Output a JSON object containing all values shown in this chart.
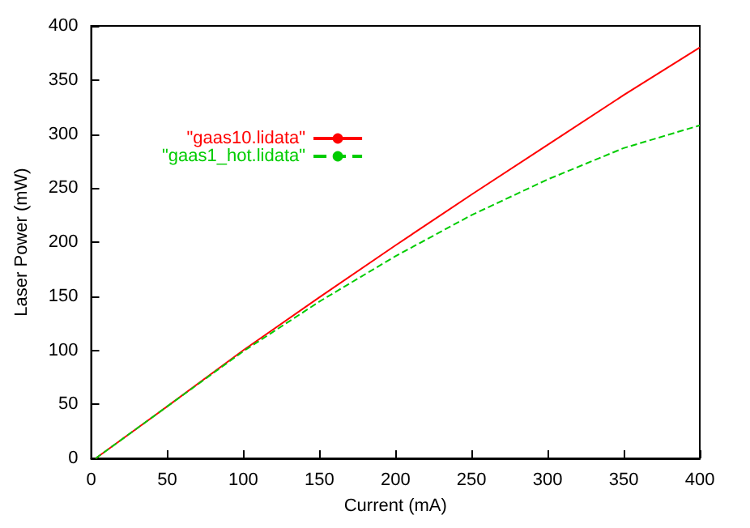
{
  "chart_data": {
    "type": "line",
    "xlabel": "Current (mA)",
    "ylabel": "Laser Power (mW)",
    "xlim": [
      0,
      400
    ],
    "xticks": [
      0,
      50,
      100,
      150,
      200,
      250,
      300,
      350,
      400
    ],
    "ylim": [
      0,
      400
    ],
    "yticks": [
      0,
      50,
      100,
      150,
      200,
      250,
      300,
      350,
      400
    ],
    "grid": false,
    "legend": "top left",
    "marker": "none",
    "series": [
      {
        "name": "\"gaas10.lidata\"",
        "color": "#ff0000",
        "line_style": "solid",
        "x": [
          3,
          50,
          100,
          150,
          200,
          250,
          300,
          350,
          400
        ],
        "values": [
          0,
          48,
          100,
          149,
          197,
          244,
          290,
          336,
          380
        ]
      },
      {
        "name": "\"gaas1_hot.lidata\"",
        "color": "#00cc00",
        "line_style": "dashed",
        "x": [
          3,
          50,
          100,
          150,
          200,
          250,
          300,
          350,
          400
        ],
        "values": [
          0,
          48,
          99,
          145,
          187,
          225,
          258,
          287,
          308
        ]
      }
    ]
  }
}
